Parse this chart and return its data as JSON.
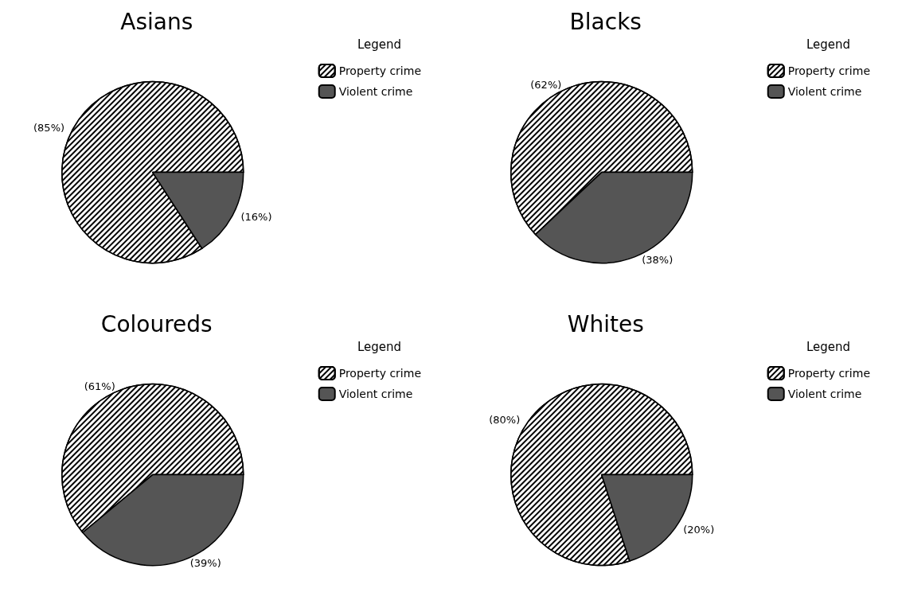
{
  "chart_data": [
    {
      "type": "pie",
      "title": "Asians",
      "legend_title": "Legend",
      "legend": "top right",
      "categories": [
        "Property crime",
        "Violent crime"
      ],
      "values": [
        85,
        16
      ],
      "value_labels": [
        "(85%)",
        "(16%)"
      ],
      "colors": [
        "#ffffff",
        "#555555"
      ]
    },
    {
      "type": "pie",
      "title": "Blacks",
      "legend_title": "Legend",
      "legend": "top right",
      "categories": [
        "Property crime",
        "Violent crime"
      ],
      "values": [
        62,
        38
      ],
      "value_labels": [
        "(62%)",
        "(38%)"
      ],
      "colors": [
        "#ffffff",
        "#555555"
      ]
    },
    {
      "type": "pie",
      "title": "Coloureds",
      "legend_title": "Legend",
      "legend": "top right",
      "categories": [
        "Property crime",
        "Violent crime"
      ],
      "values": [
        61,
        39
      ],
      "value_labels": [
        "(61%)",
        "(39%)"
      ],
      "colors": [
        "#ffffff",
        "#555555"
      ]
    },
    {
      "type": "pie",
      "title": "Whites",
      "legend_title": "Legend",
      "legend": "top right",
      "categories": [
        "Property crime",
        "Violent crime"
      ],
      "values": [
        80,
        20
      ],
      "value_labels": [
        "(80%)",
        "(20%)"
      ],
      "colors": [
        "#ffffff",
        "#555555"
      ]
    }
  ]
}
